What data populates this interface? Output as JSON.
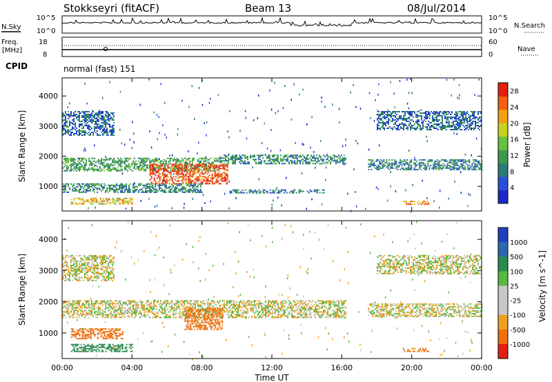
{
  "header": {
    "station": "Stokkseyri (fitACF)",
    "beam": "Beam 13",
    "date": "08/Jul/2014"
  },
  "panels": {
    "nsky_label": "N.Sky",
    "nsearch_label": "N.Search",
    "freq_label_line1": "Freq.",
    "freq_label_line2": "[MHz]",
    "nave_label": "Nave",
    "cpid_label": "CPID",
    "cpid_text": "normal (fast) 151",
    "noise_left_ticks": [
      "10^5",
      "10^0"
    ],
    "noise_right_ticks": [
      "10^5",
      "10^0"
    ],
    "freq_left_ticks": [
      "18",
      "8"
    ],
    "freq_right_ticks": [
      "60",
      "0"
    ]
  },
  "colors": {
    "power": [
      "#1e28c8",
      "#2a4fd6",
      "#2a7a78",
      "#3c9a50",
      "#68c040",
      "#c8d020",
      "#f0a010",
      "#f06010",
      "#e02010"
    ],
    "velocity": [
      "#2040c0",
      "#2a68b0",
      "#2a8a50",
      "#58b840",
      "#c8c8c8",
      "#c8c8c8",
      "#f0a020",
      "#f07010",
      "#e02010"
    ],
    "axis": "#000000"
  },
  "chart_data": [
    {
      "type": "heatmap",
      "name": "power",
      "ylabel": "Slant Range [km]",
      "xlim": [
        "00:00",
        "24:00"
      ],
      "ylim": [
        180,
        4600
      ],
      "yticks": [
        1000,
        2000,
        3000,
        4000
      ],
      "colorbar_label": "Power [dB]",
      "colorbar_ticks": [
        4,
        8,
        12,
        16,
        20,
        24,
        28
      ],
      "colorbar_range": [
        0,
        30
      ],
      "echo_regions": [
        {
          "t0": 0.0,
          "t1": 9.0,
          "r0": 1500,
          "r1": 1950,
          "level": 12
        },
        {
          "t0": 5.0,
          "t1": 9.5,
          "r0": 1100,
          "r1": 1750,
          "level": 26
        },
        {
          "t0": 9.0,
          "t1": 16.2,
          "r0": 1750,
          "r1": 2050,
          "level": 10
        },
        {
          "t0": 17.5,
          "t1": 24.0,
          "r0": 1550,
          "r1": 1900,
          "level": 9
        },
        {
          "t0": 0.5,
          "t1": 4.0,
          "r0": 420,
          "r1": 620,
          "level": 20
        },
        {
          "t0": 0.0,
          "t1": 8.0,
          "r0": 800,
          "r1": 1100,
          "level": 10
        },
        {
          "t0": 9.5,
          "t1": 15.0,
          "r0": 800,
          "r1": 900,
          "level": 8
        },
        {
          "t0": 19.5,
          "t1": 21.0,
          "r0": 400,
          "r1": 520,
          "level": 22
        },
        {
          "t0": 0.0,
          "t1": 3.0,
          "r0": 2700,
          "r1": 3500,
          "level": 7
        },
        {
          "t0": 18.0,
          "t1": 24.0,
          "r0": 2900,
          "r1": 3500,
          "level": 7
        }
      ]
    },
    {
      "type": "heatmap",
      "name": "velocity",
      "xlabel": "Time UT",
      "ylabel": "Slant Range [km]",
      "xlim": [
        "00:00",
        "24:00"
      ],
      "xticks": [
        "00:00",
        "04:00",
        "08:00",
        "12:00",
        "16:00",
        "20:00",
        "00:00"
      ],
      "ylim": [
        180,
        4600
      ],
      "yticks": [
        1000,
        2000,
        3000,
        4000
      ],
      "colorbar_label": "Velocity [m s^-1]",
      "colorbar_ticks": [
        "1000",
        "500",
        "100",
        "25",
        "-25",
        "-100",
        "-500",
        "-1000"
      ],
      "echo_regions": [
        {
          "t0": 0.0,
          "t1": 16.2,
          "r0": 1500,
          "r1": 2050,
          "velocity": 0
        },
        {
          "t0": 7.0,
          "t1": 9.2,
          "r0": 1100,
          "r1": 1800,
          "velocity": -300
        },
        {
          "t0": 0.5,
          "t1": 4.0,
          "r0": 420,
          "r1": 650,
          "velocity": 200
        },
        {
          "t0": 0.5,
          "t1": 3.5,
          "r0": 800,
          "r1": 1150,
          "velocity": -200
        },
        {
          "t0": 17.5,
          "t1": 24.0,
          "r0": 1550,
          "r1": 1950,
          "velocity": 0
        },
        {
          "t0": 19.5,
          "t1": 21.0,
          "r0": 400,
          "r1": 520,
          "velocity": -150
        },
        {
          "t0": 0.0,
          "t1": 3.0,
          "r0": 2700,
          "r1": 3500,
          "velocity": 0
        },
        {
          "t0": 18.0,
          "t1": 24.0,
          "r0": 2900,
          "r1": 3500,
          "velocity": 0
        }
      ]
    }
  ]
}
